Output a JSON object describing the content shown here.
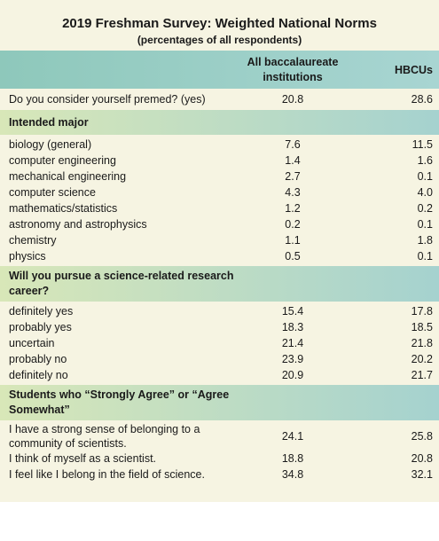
{
  "header": {
    "title": "2019 Freshman Survey: Weighted National Norms",
    "subtitle": "(percentages of all respondents)"
  },
  "table": {
    "columns": [
      "All baccalaureate institutions",
      "HBCUs"
    ],
    "premed": {
      "label": "Do you consider yourself premed? (yes)",
      "values": [
        "20.8",
        "28.6"
      ]
    },
    "sections": [
      {
        "heading": "Intended major",
        "rows": [
          {
            "label": "biology (general)",
            "values": [
              "7.6",
              "11.5"
            ]
          },
          {
            "label": "computer engineering",
            "values": [
              "1.4",
              "1.6"
            ]
          },
          {
            "label": "mechanical engineering",
            "values": [
              "2.7",
              "0.1"
            ]
          },
          {
            "label": "computer science",
            "values": [
              "4.3",
              "4.0"
            ]
          },
          {
            "label": "mathematics/statistics",
            "values": [
              "1.2",
              "0.2"
            ]
          },
          {
            "label": "astronomy and astrophysics",
            "values": [
              "0.2",
              "0.1"
            ]
          },
          {
            "label": "chemistry",
            "values": [
              "1.1",
              "1.8"
            ]
          },
          {
            "label": "physics",
            "values": [
              "0.5",
              "0.1"
            ]
          }
        ]
      },
      {
        "heading": "Will you pursue a science-related research career?",
        "rows": [
          {
            "label": "definitely yes",
            "values": [
              "15.4",
              "17.8"
            ]
          },
          {
            "label": "probably yes",
            "values": [
              "18.3",
              "18.5"
            ]
          },
          {
            "label": "uncertain",
            "values": [
              "21.4",
              "21.8"
            ]
          },
          {
            "label": "probably no",
            "values": [
              "23.9",
              "20.2"
            ]
          },
          {
            "label": "definitely no",
            "values": [
              "20.9",
              "21.7"
            ]
          }
        ]
      },
      {
        "heading": "Students who “Strongly Agree” or “Agree Somewhat”",
        "rows": [
          {
            "label": "I have a strong sense of belonging to a community of scientists.",
            "values": [
              "24.1",
              "25.8"
            ]
          },
          {
            "label": "I think of myself as a scientist.",
            "values": [
              "18.8",
              "20.8"
            ]
          },
          {
            "label": "I feel like I belong in the field of science.",
            "values": [
              "34.8",
              "32.1"
            ]
          }
        ]
      }
    ]
  }
}
